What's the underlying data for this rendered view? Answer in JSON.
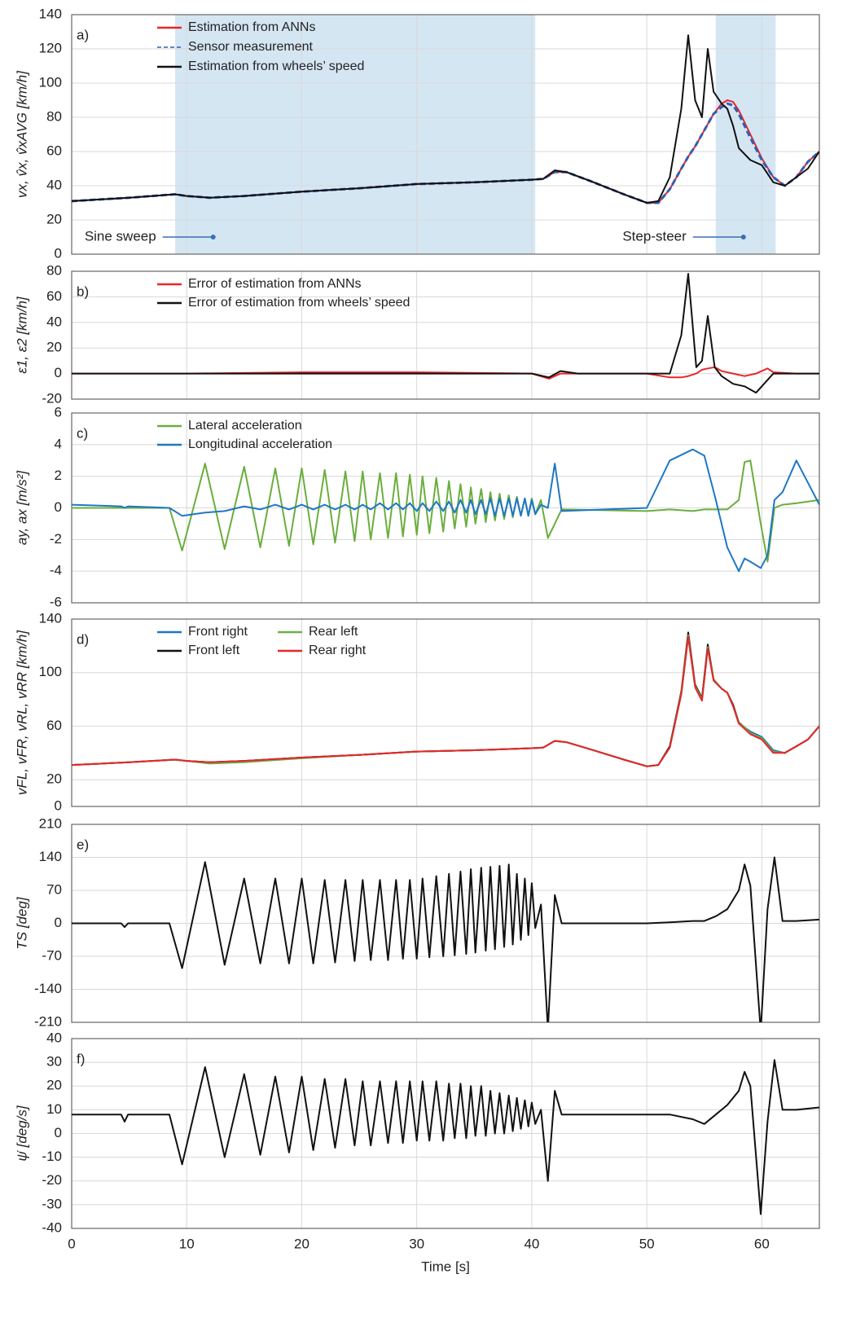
{
  "chart_data": [
    {
      "type": "line",
      "panel_label": "a)",
      "ylabel": "vx, v̂x, v̂xAVG  [km/h]",
      "xlim": [
        0,
        65
      ],
      "xticks": [
        0,
        10,
        20,
        30,
        40,
        50,
        60
      ],
      "ylim": [
        0,
        140
      ],
      "yticks": [
        0,
        20,
        40,
        60,
        80,
        100,
        120,
        140
      ],
      "grid": true,
      "legend": "upper left",
      "shaded_regions": [
        [
          9,
          40.3
        ],
        [
          56,
          61.2
        ]
      ],
      "annotations": [
        {
          "text": "Sine sweep",
          "x": 12.3,
          "y": 10
        },
        {
          "text": "Step-steer",
          "x": 58.4,
          "y": 10
        }
      ],
      "x": [
        0,
        5,
        9,
        10,
        12,
        15,
        20,
        25,
        30,
        35,
        40,
        41,
        42,
        43,
        45,
        48,
        50,
        51,
        52,
        53,
        53.6,
        54.2,
        54.8,
        55.3,
        55.8,
        56.5,
        57,
        57.5,
        58,
        59,
        60,
        61,
        62,
        63,
        64,
        65
      ],
      "series": [
        {
          "name": "Estimation from ANNs",
          "color": "#e8262a",
          "values": [
            31,
            33,
            35,
            34,
            33,
            34,
            36.5,
            38.5,
            41,
            42,
            43.5,
            44,
            48,
            48,
            43,
            35,
            30,
            30,
            38,
            50,
            57,
            63,
            70,
            76,
            82,
            88,
            90,
            89,
            84,
            70,
            56,
            45,
            40,
            45,
            54,
            60
          ]
        },
        {
          "name": "Sensor measurement",
          "color": "#2f5fb3",
          "dashed": true,
          "values": [
            31,
            33,
            35,
            34,
            33,
            34,
            36.5,
            38.5,
            41,
            42,
            43.5,
            44,
            48,
            48,
            43,
            35,
            30,
            30,
            38,
            50,
            57,
            63,
            70,
            76,
            82,
            86,
            88,
            87,
            82,
            68,
            55,
            45,
            40,
            45,
            54,
            60
          ]
        },
        {
          "name": "Estimation from wheels’ speed",
          "color": "#111111",
          "values": [
            31,
            33,
            35,
            34,
            33,
            34,
            36.5,
            38.5,
            41,
            42,
            43.5,
            44,
            49,
            48,
            43,
            35,
            30,
            31,
            45,
            85,
            128,
            90,
            80,
            120,
            95,
            88,
            85,
            75,
            62,
            55,
            52,
            42,
            40,
            45,
            50,
            60
          ]
        }
      ]
    },
    {
      "type": "line",
      "panel_label": "b)",
      "ylabel": "ε1, ε2 [km/h]",
      "xlim": [
        0,
        65
      ],
      "xticks": [
        0,
        10,
        20,
        30,
        40,
        50,
        60
      ],
      "ylim": [
        -20,
        80
      ],
      "yticks": [
        -20,
        0,
        20,
        40,
        60,
        80
      ],
      "grid": true,
      "legend": "upper left",
      "x": [
        0,
        10,
        20,
        30,
        40,
        41.5,
        42.5,
        44,
        50,
        52,
        53,
        53.6,
        54.3,
        54.8,
        55.3,
        55.9,
        56.5,
        57.5,
        58.5,
        59.5,
        60.5,
        61,
        63,
        65
      ],
      "series": [
        {
          "name": "Error of estimation from ANNs",
          "color": "#e8262a",
          "values": [
            0,
            0,
            1,
            1,
            0,
            -4,
            0,
            0,
            0,
            -3,
            -3,
            -2,
            0,
            3,
            4,
            5,
            2,
            0,
            -2,
            0,
            4,
            1,
            0,
            0
          ]
        },
        {
          "name": "Error of estimation from wheels’ speed",
          "color": "#111111",
          "values": [
            0,
            0,
            0,
            0,
            0,
            -3,
            2,
            0,
            0,
            0,
            30,
            78,
            5,
            10,
            45,
            5,
            -2,
            -8,
            -10,
            -15,
            -5,
            0,
            0,
            0
          ]
        }
      ]
    },
    {
      "type": "line",
      "panel_label": "c)",
      "ylabel": "ay, ax [m/s²]",
      "xlim": [
        0,
        65
      ],
      "xticks": [
        0,
        10,
        20,
        30,
        40,
        50,
        60
      ],
      "ylim": [
        -6,
        6
      ],
      "yticks": [
        -6,
        -4,
        -2,
        0,
        2,
        4,
        6
      ],
      "grid": true,
      "legend": "upper left",
      "x": [
        0,
        4.3,
        4.6,
        4.9,
        8.5,
        9.6,
        11.6,
        13.3,
        15,
        16.4,
        17.7,
        18.9,
        20,
        21,
        22,
        22.9,
        23.8,
        24.6,
        25.3,
        26,
        26.8,
        27.5,
        28.2,
        28.8,
        29.4,
        30,
        30.5,
        31.1,
        31.7,
        32.3,
        32.8,
        33.3,
        33.8,
        34.3,
        34.7,
        35.1,
        35.6,
        36,
        36.4,
        36.8,
        37.2,
        37.6,
        38,
        38.35,
        38.7,
        39.05,
        39.4,
        39.7,
        40,
        40.3,
        40.8,
        41.4,
        42,
        42.6,
        50,
        52,
        54,
        55,
        56,
        57,
        58,
        58.5,
        59,
        59.9,
        60.5,
        61.1,
        61.8,
        63,
        65
      ],
      "series": [
        {
          "name": "Lateral acceleration",
          "color": "#6aae3c",
          "values": [
            0,
            0,
            0,
            0,
            0,
            -2.7,
            2.8,
            -2.6,
            2.6,
            -2.5,
            2.5,
            -2.4,
            2.5,
            -2.3,
            2.4,
            -2.2,
            2.3,
            -2.1,
            2.3,
            -2,
            2.2,
            -1.9,
            2.2,
            -1.8,
            2.1,
            -1.7,
            2,
            -1.6,
            1.9,
            -1.5,
            1.7,
            -1.3,
            1.5,
            -1.2,
            1.3,
            -1,
            1.2,
            -0.9,
            1,
            -0.8,
            0.9,
            -0.7,
            0.8,
            -0.6,
            0.7,
            -0.5,
            0.6,
            -0.5,
            0.6,
            -0.4,
            0.5,
            -1.9,
            -1,
            -0.1,
            -0.2,
            -0.1,
            -0.2,
            -0.1,
            -0.1,
            -0.1,
            0.5,
            2.9,
            3,
            -1,
            -3.4,
            0,
            0.2,
            0.3,
            0.5
          ]
        },
        {
          "name": "Longitudinal acceleration",
          "color": "#1f77c4",
          "values": [
            0.2,
            0.1,
            0,
            0.1,
            0,
            -0.5,
            -0.3,
            -0.2,
            0.1,
            -0.1,
            0.2,
            -0.1,
            0.2,
            -0.1,
            0.2,
            -0.1,
            0.2,
            -0.1,
            0.2,
            -0.1,
            0.3,
            -0.1,
            0.3,
            -0.1,
            0.3,
            -0.2,
            0.3,
            -0.2,
            0.4,
            -0.2,
            0.4,
            -0.3,
            0.5,
            -0.3,
            0.5,
            -0.4,
            0.5,
            -0.4,
            0.6,
            -0.5,
            0.6,
            -0.5,
            0.6,
            -0.5,
            0.6,
            -0.5,
            0.6,
            -0.5,
            0.5,
            -0.4,
            0.2,
            0,
            2.8,
            -0.2,
            0,
            3,
            3.7,
            3.3,
            0.5,
            -2.5,
            -4,
            -3.2,
            -3.4,
            -3.8,
            -3,
            0.5,
            1,
            3,
            0.2
          ]
        }
      ]
    },
    {
      "type": "line",
      "panel_label": "d)",
      "ylabel": "vFL, vFR, vRL, vRR  [km/h]",
      "xlim": [
        0,
        65
      ],
      "xticks": [
        0,
        10,
        20,
        30,
        40,
        50,
        60
      ],
      "ylim": [
        0,
        140
      ],
      "yticks": [
        0,
        20,
        60,
        100,
        140
      ],
      "grid": true,
      "legend": "upper left",
      "legend_columns": 2,
      "x": [
        0,
        5,
        9,
        10,
        12,
        15,
        20,
        25,
        30,
        35,
        40,
        41,
        42,
        43,
        45,
        48,
        50,
        51,
        52,
        53,
        53.6,
        54.2,
        54.8,
        55.3,
        55.8,
        56.5,
        57,
        57.5,
        58,
        59,
        60,
        61,
        62,
        63,
        64,
        65
      ],
      "series": [
        {
          "name": "Front right",
          "color": "#1f77c4",
          "values": [
            31,
            33,
            35,
            34,
            33,
            34,
            36.5,
            38.5,
            41,
            42,
            43.5,
            44,
            49,
            48,
            43,
            35,
            30,
            31,
            45,
            84,
            127,
            90,
            80,
            119,
            95,
            88,
            85,
            75,
            62,
            56,
            52,
            42,
            40,
            45,
            50,
            60
          ]
        },
        {
          "name": "Front left",
          "color": "#111111",
          "values": [
            31,
            33,
            35,
            34,
            33,
            34,
            36.5,
            38.5,
            41,
            42,
            43.5,
            44,
            49,
            48,
            43,
            35,
            30,
            31,
            45,
            86,
            130,
            91,
            81,
            121,
            95,
            88,
            85,
            76,
            63,
            55,
            51,
            41,
            40,
            45,
            50,
            60
          ]
        },
        {
          "name": "Rear left",
          "color": "#6ab04c",
          "values": [
            31,
            33,
            35,
            34,
            32,
            33,
            36,
            38.5,
            41,
            42,
            43.5,
            44,
            49,
            48,
            43,
            35,
            30,
            31,
            44,
            85,
            128,
            90,
            80,
            119,
            95,
            88,
            85,
            75,
            63,
            55,
            51,
            41,
            40,
            45,
            50,
            60
          ]
        },
        {
          "name": "Rear right",
          "color": "#e8262a",
          "values": [
            31,
            33,
            35,
            34,
            33,
            34,
            36.5,
            38.5,
            41,
            42,
            43.5,
            44,
            49,
            48,
            43,
            35,
            30,
            31,
            44,
            84,
            127,
            89,
            79,
            118,
            94,
            88,
            85,
            75,
            62,
            54,
            50,
            40,
            40,
            45,
            50,
            60
          ]
        }
      ]
    },
    {
      "type": "line",
      "panel_label": "e)",
      "ylabel": "TS [deg]",
      "xlim": [
        0,
        65
      ],
      "xticks": [
        0,
        10,
        20,
        30,
        40,
        50,
        60
      ],
      "ylim": [
        -210,
        210
      ],
      "yticks": [
        -210,
        -140,
        -70,
        0,
        70,
        140,
        210
      ],
      "grid": true,
      "x": [
        0,
        4.3,
        4.6,
        4.9,
        8.5,
        9.6,
        11.6,
        13.3,
        15,
        16.4,
        17.7,
        18.9,
        20,
        21,
        22,
        22.9,
        23.8,
        24.6,
        25.3,
        26,
        26.8,
        27.5,
        28.2,
        28.8,
        29.4,
        30,
        30.5,
        31.1,
        31.7,
        32.3,
        32.8,
        33.3,
        33.8,
        34.3,
        34.7,
        35.1,
        35.6,
        36,
        36.4,
        36.8,
        37.2,
        37.6,
        38,
        38.35,
        38.7,
        39.05,
        39.4,
        39.7,
        40,
        40.3,
        40.8,
        41.4,
        42,
        42.6,
        50,
        52,
        54,
        55,
        56,
        57,
        58,
        58.5,
        59,
        59.9,
        60.5,
        61.1,
        61.8,
        63,
        65
      ],
      "series": [
        {
          "color": "#111111",
          "values": [
            0,
            0,
            -8,
            0,
            0,
            -95,
            130,
            -88,
            95,
            -85,
            95,
            -85,
            95,
            -85,
            92,
            -83,
            92,
            -80,
            92,
            -78,
            92,
            -78,
            92,
            -75,
            92,
            -75,
            95,
            -72,
            100,
            -70,
            105,
            -68,
            110,
            -65,
            115,
            -62,
            118,
            -58,
            120,
            -55,
            122,
            -50,
            125,
            -45,
            105,
            -35,
            95,
            -25,
            85,
            -10,
            40,
            -225,
            60,
            0,
            0,
            2,
            5,
            5,
            15,
            30,
            70,
            125,
            80,
            -230,
            30,
            140,
            5,
            5,
            8
          ]
        }
      ]
    },
    {
      "type": "line",
      "panel_label": "f)",
      "ylabel": "ψ̇ [deg/s]",
      "xlabel": "Time [s]",
      "xtick_labels": true,
      "xlim": [
        0,
        65
      ],
      "xticks": [
        0,
        10,
        20,
        30,
        40,
        50,
        60
      ],
      "ylim": [
        -40,
        40
      ],
      "yticks": [
        -40,
        -30,
        -20,
        -10,
        0,
        10,
        20,
        30,
        40
      ],
      "grid": true,
      "x": [
        0,
        4.3,
        4.6,
        4.9,
        8.5,
        9.6,
        11.6,
        13.3,
        15,
        16.4,
        17.7,
        18.9,
        20,
        21,
        22,
        22.9,
        23.8,
        24.6,
        25.3,
        26,
        26.8,
        27.5,
        28.2,
        28.8,
        29.4,
        30,
        30.5,
        31.1,
        31.7,
        32.3,
        32.8,
        33.3,
        33.8,
        34.3,
        34.7,
        35.1,
        35.6,
        36,
        36.4,
        36.8,
        37.2,
        37.6,
        38,
        38.35,
        38.7,
        39.05,
        39.4,
        39.7,
        40,
        40.3,
        40.8,
        41.4,
        42,
        42.6,
        50,
        52,
        54,
        55,
        56,
        57,
        58,
        58.5,
        59,
        59.9,
        60.5,
        61.1,
        61.8,
        63,
        65
      ],
      "series": [
        {
          "color": "#111111",
          "values": [
            8,
            8,
            5,
            8,
            8,
            -13,
            28,
            -10,
            25,
            -9,
            24,
            -8,
            24,
            -7,
            23,
            -6,
            23,
            -5,
            22,
            -5,
            22,
            -4,
            22,
            -4,
            22,
            -3,
            22,
            -3,
            22,
            -3,
            21,
            -2,
            21,
            -2,
            20,
            -1,
            20,
            -1,
            18,
            0,
            17,
            0,
            16,
            1,
            15,
            2,
            14,
            3,
            13,
            4,
            10,
            -20,
            18,
            8,
            8,
            8,
            6,
            4,
            8,
            12,
            18,
            26,
            20,
            -34,
            5,
            31,
            10,
            10,
            11
          ]
        }
      ]
    }
  ]
}
